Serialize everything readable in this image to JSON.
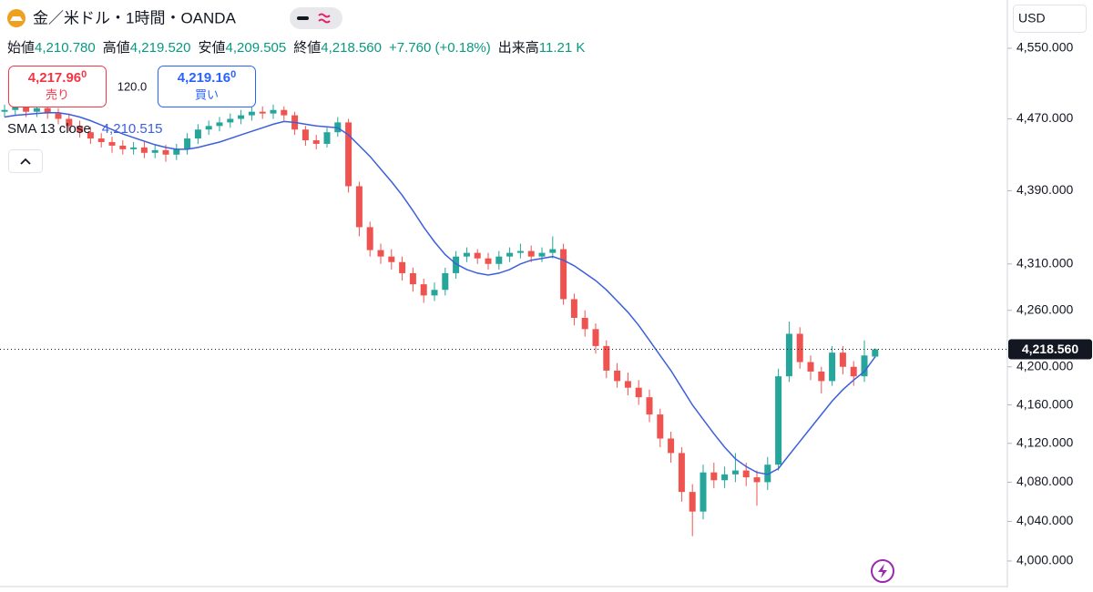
{
  "header": {
    "symbol": "金／米ドル・1時間・OANDA",
    "ohlc": [
      {
        "label": "始値",
        "value": "4,210.780"
      },
      {
        "label": "高値",
        "value": "4,219.520"
      },
      {
        "label": "安値",
        "value": "4,209.505"
      },
      {
        "label": "終値",
        "value": "4,218.560"
      }
    ],
    "change": "+7.760 (+0.18%)",
    "volume_label": "出来高",
    "volume": "11.21 K",
    "currency": "USD"
  },
  "trade": {
    "sell": {
      "price": "4,217.96",
      "price_small": "0",
      "label": "売り"
    },
    "spread": "120.0",
    "buy": {
      "price": "4,219.16",
      "price_small": "0",
      "label": "買い"
    }
  },
  "chart_data": {
    "type": "candlestick",
    "log_scale": true,
    "up_color": "#26a69a",
    "down_color": "#ef5350",
    "ylim": [
      3973.5,
      4605.5
    ],
    "yticks": [
      {
        "value": 4000,
        "label": "4,000.000"
      },
      {
        "value": 4040,
        "label": "4,040.000"
      },
      {
        "value": 4080,
        "label": "4,080.000"
      },
      {
        "value": 4120,
        "label": "4,120.000"
      },
      {
        "value": 4160,
        "label": "4,160.000"
      },
      {
        "value": 4200,
        "label": "4,200.000"
      },
      {
        "value": 4260,
        "label": "4,260.000"
      },
      {
        "value": 4310,
        "label": "4,310.000"
      },
      {
        "value": 4390,
        "label": "4,390.000"
      },
      {
        "value": 4470,
        "label": "4,470.000"
      },
      {
        "value": 4550,
        "label": "4,550.000"
      }
    ],
    "open": [
      4478,
      4480,
      4484,
      4478,
      4482,
      4476,
      4470,
      4462,
      4455,
      4448,
      4444,
      4440,
      4436,
      4438,
      4432,
      4435,
      4430,
      4436,
      4448,
      4458,
      4462,
      4466,
      4470,
      4474,
      4478,
      4476,
      4480,
      4474,
      4458,
      4446,
      4442,
      4455,
      4466,
      4395,
      4350,
      4325,
      4318,
      4312,
      4300,
      4288,
      4276,
      4282,
      4300,
      4318,
      4322,
      4316,
      4310,
      4318,
      4322,
      4324,
      4318,
      4322,
      4326,
      4272,
      4252,
      4240,
      4222,
      4196,
      4185,
      4178,
      4168,
      4150,
      4125,
      4110,
      4070,
      4050,
      4090,
      4082,
      4088,
      4092,
      4085,
      4080,
      4098,
      4190,
      4235,
      4205,
      4195,
      4185,
      4215,
      4200,
      4190,
      4210.78
    ],
    "high": [
      4486,
      4490,
      4490,
      4488,
      4488,
      4482,
      4476,
      4468,
      4461,
      4454,
      4450,
      4446,
      4444,
      4444,
      4441,
      4441,
      4442,
      4454,
      4464,
      4468,
      4472,
      4476,
      4480,
      4484,
      4484,
      4486,
      4484,
      4478,
      4462,
      4452,
      4460,
      4472,
      4470,
      4400,
      4356,
      4332,
      4326,
      4318,
      4306,
      4294,
      4290,
      4306,
      4324,
      4328,
      4326,
      4322,
      4324,
      4328,
      4332,
      4330,
      4328,
      4340,
      4332,
      4278,
      4260,
      4246,
      4228,
      4204,
      4194,
      4186,
      4176,
      4156,
      4132,
      4116,
      4078,
      4098,
      4100,
      4096,
      4110,
      4100,
      4092,
      4106,
      4198,
      4248,
      4242,
      4212,
      4200,
      4222,
      4222,
      4206,
      4228,
      4219.52
    ],
    "low": [
      4472,
      4474,
      4472,
      4472,
      4470,
      4464,
      4456,
      4449,
      4442,
      4438,
      4432,
      4430,
      4430,
      4426,
      4426,
      4422,
      4424,
      4430,
      4442,
      4452,
      4456,
      4460,
      4464,
      4468,
      4470,
      4470,
      4468,
      4452,
      4440,
      4436,
      4438,
      4450,
      4388,
      4340,
      4318,
      4310,
      4304,
      4292,
      4280,
      4268,
      4270,
      4276,
      4294,
      4312,
      4310,
      4304,
      4304,
      4312,
      4316,
      4312,
      4312,
      4316,
      4266,
      4244,
      4232,
      4214,
      4188,
      4178,
      4170,
      4160,
      4142,
      4116,
      4100,
      4060,
      4025,
      4042,
      4074,
      4074,
      4080,
      4076,
      4056,
      4072,
      4092,
      4184,
      4198,
      4186,
      4172,
      4180,
      4192,
      4180,
      4184,
      4209.505
    ],
    "close": [
      4480,
      4484,
      4478,
      4482,
      4476,
      4470,
      4462,
      4455,
      4448,
      4444,
      4440,
      4436,
      4438,
      4432,
      4435,
      4430,
      4436,
      4448,
      4458,
      4462,
      4466,
      4470,
      4474,
      4478,
      4476,
      4480,
      4474,
      4458,
      4446,
      4442,
      4455,
      4466,
      4395,
      4350,
      4325,
      4318,
      4312,
      4300,
      4288,
      4276,
      4282,
      4300,
      4318,
      4322,
      4316,
      4310,
      4318,
      4322,
      4324,
      4318,
      4322,
      4326,
      4272,
      4252,
      4240,
      4222,
      4196,
      4185,
      4178,
      4168,
      4150,
      4125,
      4110,
      4070,
      4050,
      4090,
      4082,
      4088,
      4092,
      4085,
      4080,
      4098,
      4190,
      4235,
      4205,
      4195,
      4185,
      4215,
      4200,
      4190,
      4212,
      4218.56
    ],
    "sma": {
      "name": "SMA 13 close",
      "color": "#3c5fdc",
      "legend_value_label": "4,210.515",
      "values": [
        4472,
        4474,
        4475,
        4476,
        4477,
        4477,
        4475,
        4472,
        4468,
        4463,
        4458,
        4453,
        4449,
        4445,
        4441,
        4438,
        4436,
        4436,
        4438,
        4441,
        4444,
        4448,
        4452,
        4456,
        4460,
        4464,
        4467,
        4466,
        4464,
        4462,
        4461,
        4460,
        4452,
        4440,
        4428,
        4414,
        4400,
        4385,
        4368,
        4350,
        4334,
        4320,
        4310,
        4304,
        4300,
        4298,
        4300,
        4304,
        4310,
        4314,
        4316,
        4318,
        4314,
        4308,
        4300,
        4292,
        4282,
        4270,
        4258,
        4244,
        4228,
        4212,
        4196,
        4178,
        4160,
        4145,
        4130,
        4116,
        4104,
        4096,
        4090,
        4088,
        4094,
        4108,
        4122,
        4136,
        4150,
        4164,
        4176,
        4186,
        4195,
        4210.515
      ]
    },
    "last_price": {
      "value": 4218.56,
      "label": "4,218.560"
    }
  }
}
